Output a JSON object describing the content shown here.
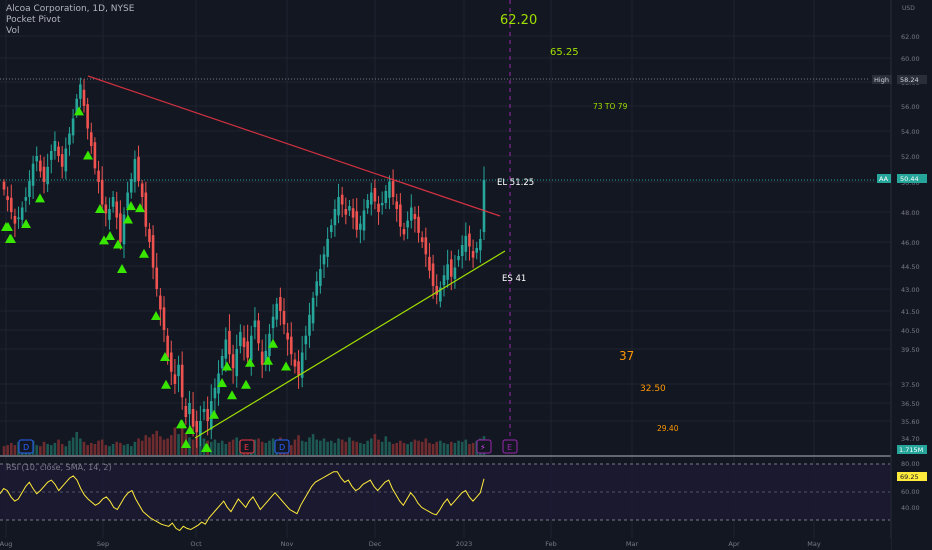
{
  "header": {
    "symbol_line": "Alcoa Corporation, 1D, NYSE",
    "indicator1": "Pocket Pivot",
    "indicator2": "Vol"
  },
  "axis": {
    "currency": "USD",
    "y_ticks": [
      "62.00",
      "60.00",
      "58.00",
      "56.00",
      "54.00",
      "52.00",
      "50.00",
      "48.00",
      "46.00",
      "44.50",
      "43.00",
      "41.50",
      "40.50",
      "39.50",
      "37.50",
      "36.50",
      "35.60",
      "34.70"
    ],
    "x_ticks": [
      "Aug",
      "Sep",
      "Oct",
      "Nov",
      "Dec",
      "2023",
      "Feb",
      "Mar",
      "Apr",
      "May"
    ],
    "rsi_ticks": [
      "80.00",
      "60.00",
      "40.00"
    ]
  },
  "badges": {
    "high_label": "High",
    "high_value": "58.24",
    "last_symbol": "AA",
    "last_value": "50.44",
    "volume_value": "1.715M",
    "rsi_value": "69.25"
  },
  "annotations": {
    "t1": "62.20",
    "t2": "65.25",
    "t3": "73 TO 79",
    "el": "EL 51.25",
    "es": "ES 41",
    "t4": "37",
    "t5": "32.50",
    "t6": "29.40"
  },
  "rsi": {
    "label": "RSI (10, close, SMA, 14, 2)"
  },
  "events": {
    "dividend": "D",
    "earnings": "E",
    "flash": "⚡"
  },
  "chart_data": {
    "type": "candlestick",
    "y_range_price": [
      34.7,
      62.0
    ],
    "high_line": 58.24,
    "last_price": 50.44,
    "closes": [
      49.5,
      48.8,
      48.0,
      47.2,
      47.6,
      48.3,
      49.0,
      50.2,
      51.5,
      52.0,
      51.0,
      50.0,
      51.3,
      52.4,
      53.2,
      52.0,
      51.3,
      52.6,
      53.8,
      55.0,
      56.6,
      57.8,
      56.0,
      54.2,
      52.8,
      51.2,
      50.0,
      48.5,
      47.9,
      48.2,
      49.0,
      47.6,
      46.0,
      47.8,
      49.3,
      50.5,
      51.8,
      50.2,
      49.0,
      47.0,
      46.0,
      44.4,
      43.0,
      41.6,
      40.5,
      39.0,
      38.2,
      37.5,
      38.6,
      36.8,
      35.8,
      36.5,
      35.3,
      35.0,
      35.6,
      36.2,
      35.6,
      36.6,
      37.3,
      38.1,
      39.1,
      40.0,
      39.2,
      38.4,
      39.5,
      40.4,
      39.6,
      39.0,
      40.2,
      41.0,
      39.8,
      38.6,
      39.4,
      40.3,
      41.2,
      42.0,
      41.5,
      40.8,
      40.0,
      39.2,
      38.5,
      38.0,
      39.3,
      40.2,
      41.3,
      42.4,
      43.5,
      44.3,
      45.2,
      46.2,
      47.1,
      48.2,
      49.0,
      48.5,
      47.8,
      48.4,
      47.6,
      46.8,
      47.2,
      48.1,
      48.8,
      49.3,
      48.7,
      48.0,
      48.6,
      49.4,
      50.1,
      49.0,
      48.2,
      47.0,
      46.5,
      47.4,
      48.3,
      47.5,
      46.6,
      46.0,
      45.2,
      44.2,
      43.2,
      42.6,
      43.1,
      43.9,
      44.6,
      43.8,
      44.4,
      45.1,
      45.8,
      46.4,
      45.7,
      45.0,
      45.6,
      46.2,
      50.44
    ],
    "volumes": [
      0.8,
      0.9,
      1.1,
      0.9,
      1.2,
      1.0,
      0.8,
      1.1,
      1.3,
      0.9,
      0.8,
      1.2,
      1.0,
      0.9,
      1.1,
      1.4,
      1.0,
      0.8,
      1.3,
      1.6,
      2.1,
      1.5,
      1.2,
      0.9,
      1.1,
      1.0,
      1.3,
      1.4,
      0.9,
      0.8,
      1.0,
      1.2,
      1.1,
      0.9,
      1.0,
      0.8,
      1.2,
      1.5,
      1.3,
      1.8,
      1.6,
      1.9,
      2.2,
      1.7,
      1.4,
      1.5,
      1.8,
      2.5,
      1.9,
      2.8,
      2.0,
      1.6,
      1.4,
      1.7,
      3.0,
      1.5,
      1.3,
      1.2,
      1.4,
      1.1,
      1.3,
      1.0,
      1.2,
      1.4,
      1.6,
      1.3,
      1.1,
      1.0,
      1.2,
      1.4,
      1.5,
      1.2,
      1.1,
      1.3,
      1.5,
      1.2,
      1.6,
      1.0,
      1.1,
      0.9,
      1.4,
      1.8,
      1.3,
      1.2,
      1.6,
      1.9,
      1.4,
      1.3,
      1.5,
      1.2,
      1.3,
      1.1,
      1.5,
      1.4,
      1.2,
      1.6,
      1.3,
      1.2,
      1.1,
      1.0,
      1.3,
      1.5,
      1.9,
      1.4,
      1.2,
      1.7,
      1.2,
      1.0,
      1.1,
      1.3,
      1.1,
      1.0,
      1.2,
      1.4,
      1.3,
      1.2,
      1.5,
      1.1,
      1.0,
      1.2,
      1.3,
      1.1,
      1.0,
      1.2,
      1.1,
      1.3,
      1.2,
      1.4,
      1.0,
      1.1,
      1.3,
      1.5,
      1.715
    ],
    "pocket_pivots": [
      6,
      8,
      10,
      11,
      26,
      40,
      79,
      88,
      100,
      104,
      110,
      118,
      122,
      128,
      131,
      140,
      144,
      156,
      165,
      166,
      181,
      182,
      186,
      190,
      206,
      207,
      214,
      222,
      227,
      232,
      246,
      250,
      268,
      273,
      286
    ],
    "trendlines": {
      "resistance": {
        "from": [
          88,
          58.7
        ],
        "to": [
          500,
          47.7
        ]
      },
      "support": {
        "from": [
          195,
          34.7
        ],
        "to": [
          505,
          45.4
        ]
      }
    },
    "rsi_values": [
      55,
      60,
      58,
      52,
      48,
      50,
      56,
      62,
      66,
      60,
      55,
      58,
      62,
      66,
      68,
      64,
      58,
      62,
      66,
      70,
      72,
      68,
      60,
      54,
      50,
      47,
      44,
      46,
      50,
      52,
      48,
      42,
      40,
      46,
      52,
      56,
      58,
      50,
      44,
      38,
      35,
      32,
      30,
      28,
      26,
      25,
      24,
      27,
      22,
      20,
      24,
      22,
      21,
      23,
      25,
      28,
      26,
      32,
      36,
      40,
      44,
      48,
      42,
      38,
      44,
      50,
      46,
      42,
      48,
      52,
      46,
      40,
      44,
      48,
      52,
      56,
      52,
      48,
      44,
      40,
      38,
      36,
      44,
      50,
      56,
      62,
      66,
      68,
      70,
      72,
      74,
      76,
      76,
      70,
      66,
      68,
      62,
      58,
      60,
      64,
      66,
      68,
      62,
      58,
      62,
      66,
      68,
      60,
      54,
      48,
      44,
      50,
      56,
      52,
      46,
      42,
      40,
      38,
      36,
      35,
      40,
      46,
      50,
      44,
      48,
      52,
      56,
      58,
      52,
      48,
      52,
      56,
      69.25
    ],
    "rsi_levels": [
      70,
      50,
      30
    ],
    "projection_targets": [
      62.2,
      65.25,
      "73 TO 79",
      51.25,
      41,
      37,
      32.5,
      29.4
    ]
  }
}
